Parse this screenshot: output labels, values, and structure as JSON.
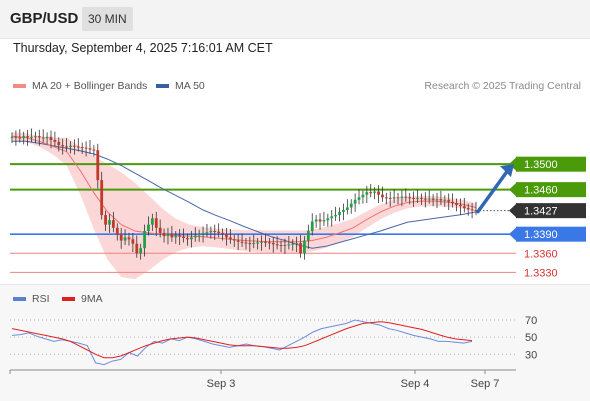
{
  "header": {
    "pair": "GBP/USD",
    "timeframe": "30 MIN",
    "datetime": "Thursday, September 4, 2025 7:16:01 AM CET",
    "credit": "Research © 2025 Trading Central"
  },
  "legend": {
    "bollinger_label": "MA 20 + Bollinger Bands",
    "bollinger_color": "#f28b82",
    "ma50_label": "MA 50",
    "ma50_color": "#3a5fa0"
  },
  "rsi_legend": {
    "rsi_label": "RSI",
    "rsi_color": "#5b7fd1",
    "ma9_label": "9MA",
    "ma9_color": "#e02020"
  },
  "colors": {
    "resistance": "#4a9a0a",
    "support": "#3b78e7",
    "pivot_red": "#f08080",
    "current_price": "#333333",
    "bands_fill": "#fbd5d5",
    "candle_up": "#22a04a",
    "candle_down": "#c0392b",
    "arrow": "#2f67b3"
  },
  "chart_data": [
    {
      "type": "candlestick",
      "yrange": [
        1.3318,
        1.3593
      ],
      "x_tick_labels": [
        "Sep 3",
        "Sep 4",
        "Sep 7"
      ],
      "current_price": 1.3427,
      "levels": [
        {
          "value": 1.35,
          "label": "1.3500",
          "kind": "resistance"
        },
        {
          "value": 1.346,
          "label": "1.3460",
          "kind": "resistance"
        },
        {
          "value": 1.3427,
          "label": "1.3427",
          "kind": "current"
        },
        {
          "value": 1.339,
          "label": "1.3390",
          "kind": "support"
        },
        {
          "value": 1.336,
          "label": "1.3360",
          "kind": "pivot"
        },
        {
          "value": 1.333,
          "label": "1.3330",
          "kind": "pivot"
        }
      ],
      "closes": [
        1.3543,
        1.3542,
        1.3541,
        1.3544,
        1.3542,
        1.3543,
        1.3544,
        1.3542,
        1.3541,
        1.3543,
        1.3538,
        1.3535,
        1.353,
        1.3528,
        1.3527,
        1.3529,
        1.3528,
        1.3527,
        1.3526,
        1.3525,
        1.3523,
        1.3522,
        1.3475,
        1.342,
        1.3405,
        1.3412,
        1.34,
        1.339,
        1.338,
        1.3385,
        1.3382,
        1.3375,
        1.336,
        1.3368,
        1.3395,
        1.3405,
        1.3415,
        1.34,
        1.3392,
        1.3387,
        1.339,
        1.3385,
        1.3388,
        1.3386,
        1.3384,
        1.3382,
        1.3385,
        1.3388,
        1.339,
        1.3392,
        1.3393,
        1.3395,
        1.3394,
        1.3392,
        1.339,
        1.3385,
        1.3382,
        1.338,
        1.3378,
        1.3377,
        1.3376,
        1.3375,
        1.3376,
        1.3377,
        1.3378,
        1.3377,
        1.3376,
        1.3374,
        1.3373,
        1.3372,
        1.3373,
        1.3374,
        1.3375,
        1.3376,
        1.336,
        1.338,
        1.3395,
        1.341,
        1.3413,
        1.341,
        1.3412,
        1.3415,
        1.3418,
        1.342,
        1.3425,
        1.3428,
        1.3432,
        1.3438,
        1.3444,
        1.3448,
        1.3452,
        1.3456,
        1.3455,
        1.3457,
        1.3452,
        1.3448,
        1.3447,
        1.3446,
        1.3448,
        1.3447,
        1.3449,
        1.3448,
        1.3447,
        1.3446,
        1.3447,
        1.3446,
        1.3445,
        1.3446,
        1.3444,
        1.3445,
        1.3443,
        1.3444,
        1.3441,
        1.3439,
        1.3436,
        1.3434,
        1.3431,
        1.3429,
        1.3428,
        1.3427
      ],
      "ma50": [
        1.3536,
        1.3536,
        1.3533,
        1.3529,
        1.3525,
        1.3521,
        1.3516,
        1.3508,
        1.3498,
        1.3486,
        1.3474,
        1.3462,
        1.3451,
        1.344,
        1.3428,
        1.3419,
        1.3411,
        1.3402,
        1.3394,
        1.3386,
        1.338,
        1.3373,
        1.3368,
        1.3371,
        1.3377,
        1.3383,
        1.3389,
        1.3395,
        1.3402,
        1.3409,
        1.3412,
        1.3415,
        1.3418,
        1.3421,
        1.3425
      ],
      "ma20": [
        1.3544,
        1.3542,
        1.3536,
        1.3528,
        1.352,
        1.349,
        1.3455,
        1.3425,
        1.3405,
        1.3395,
        1.3392,
        1.339,
        1.3388,
        1.3387,
        1.3386,
        1.3384,
        1.3382,
        1.338,
        1.3379,
        1.3378,
        1.3378,
        1.3378,
        1.338,
        1.3385,
        1.3392,
        1.34,
        1.3413,
        1.3425,
        1.3434,
        1.344,
        1.3442,
        1.3442,
        1.344,
        1.3437,
        1.3432
      ]
    },
    {
      "type": "line",
      "title": "RSI",
      "yrange": [
        14,
        84
      ],
      "y_tick_labels": [
        "70",
        "50",
        "30"
      ],
      "rsi": [
        52,
        53,
        55,
        51,
        48,
        45,
        47,
        45,
        43,
        40,
        20,
        18,
        22,
        24,
        32,
        28,
        38,
        45,
        43,
        48,
        46,
        50,
        48,
        45,
        42,
        40,
        38,
        40,
        42,
        40,
        39,
        37,
        35,
        40,
        45,
        50,
        56,
        60,
        62,
        64,
        66,
        70,
        68,
        66,
        64,
        60,
        58,
        55,
        52,
        50,
        48,
        45,
        45,
        44,
        43,
        45
      ],
      "ma9": [
        60,
        58,
        56,
        54,
        52,
        50,
        48,
        45,
        40,
        35,
        30,
        26,
        26,
        28,
        32,
        36,
        40,
        43,
        46,
        48,
        49,
        50,
        49,
        47,
        45,
        43,
        41,
        40,
        40,
        40,
        39,
        38,
        37,
        37,
        38,
        40,
        44,
        48,
        52,
        56,
        60,
        63,
        66,
        67,
        68,
        67,
        65,
        63,
        61,
        59,
        56,
        53,
        50,
        48,
        47,
        46
      ]
    }
  ]
}
